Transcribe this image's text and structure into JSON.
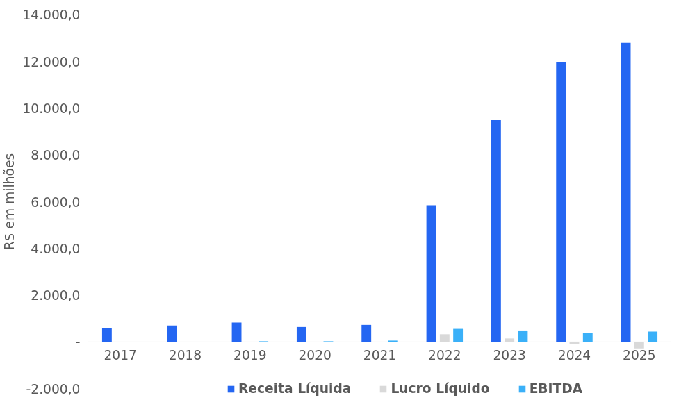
{
  "chart_data": {
    "type": "bar",
    "ylabel": "R$ em milhões",
    "categories": [
      "2017",
      "2018",
      "2019",
      "2020",
      "2021",
      "2022",
      "2023",
      "2024",
      "2025"
    ],
    "series": [
      {
        "name": "Receita Líquida",
        "color": "#2466f2",
        "values": [
          610,
          700,
          830,
          640,
          730,
          5850,
          9490,
          11970,
          12800
        ]
      },
      {
        "name": "Lucro Líquido",
        "color": "#d9d9d9",
        "values": [
          0,
          0,
          0,
          0,
          10,
          330,
          150,
          -100,
          -280
        ]
      },
      {
        "name": "EBITDA",
        "color": "#3ab0f8",
        "values": [
          0,
          0,
          30,
          30,
          60,
          560,
          490,
          380,
          440
        ]
      }
    ],
    "ylim": [
      -2000,
      14000
    ],
    "yticks": [
      {
        "value": -2000,
        "label": "-2.000,0"
      },
      {
        "value": 0,
        "label": "-"
      },
      {
        "value": 2000,
        "label": "2.000,0"
      },
      {
        "value": 4000,
        "label": "4.000,0"
      },
      {
        "value": 6000,
        "label": "6.000,0"
      },
      {
        "value": 8000,
        "label": "8.000,0"
      },
      {
        "value": 10000,
        "label": "10.000,0"
      },
      {
        "value": 12000,
        "label": "12.000,0"
      },
      {
        "value": 14000,
        "label": "14.000,0"
      }
    ],
    "grid": false,
    "legend": "bottom"
  }
}
